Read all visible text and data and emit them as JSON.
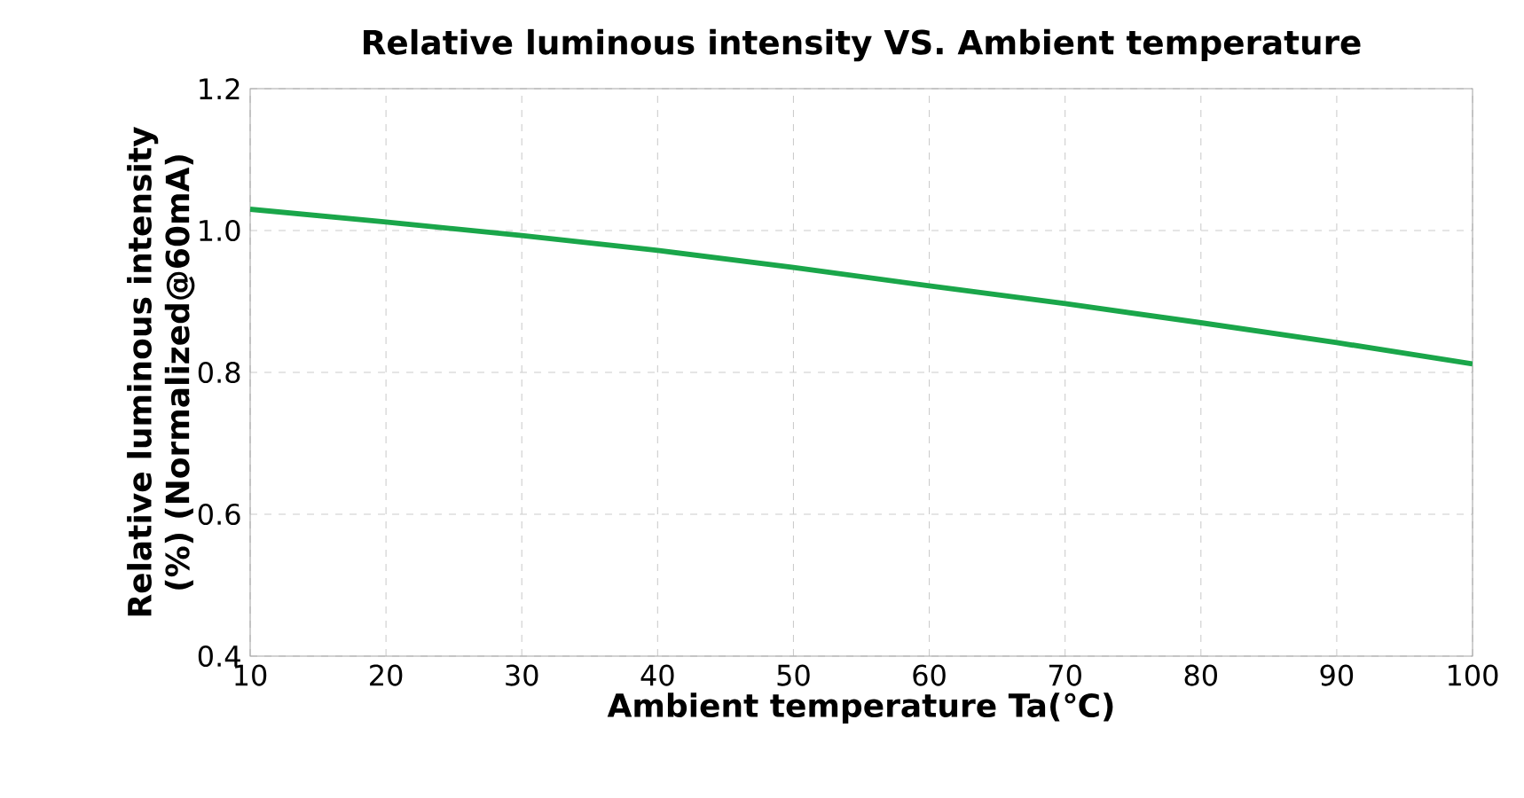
{
  "chart_data": {
    "type": "line",
    "title": "Relative luminous intensity VS.  Ambient temperature",
    "xlabel": "Ambient temperature Ta(℃)",
    "ylabel": "Relative luminous intensity (%) (Normalized@60mA)",
    "x": [
      10,
      20,
      30,
      40,
      50,
      60,
      70,
      80,
      90,
      100
    ],
    "series": [
      {
        "color": "#1aa64a",
        "values": [
          1.03,
          1.012,
          0.993,
          0.972,
          0.948,
          0.922,
          0.897,
          0.87,
          0.842,
          0.812
        ]
      }
    ],
    "xlim": [
      10,
      100
    ],
    "xticks": [
      10,
      20,
      30,
      40,
      50,
      60,
      70,
      80,
      90,
      100
    ],
    "ylim": [
      0.4,
      1.2
    ],
    "yticks": [
      {
        "value": 0.4,
        "label": "0.4"
      },
      {
        "value": 0.6,
        "label": "0.6"
      },
      {
        "value": 0.8,
        "label": "0.8"
      },
      {
        "value": 1.0,
        "label": "1.0"
      },
      {
        "value": 1.2,
        "label": "1.2"
      }
    ],
    "grid": true,
    "marker": "none",
    "line_style": "solid"
  }
}
